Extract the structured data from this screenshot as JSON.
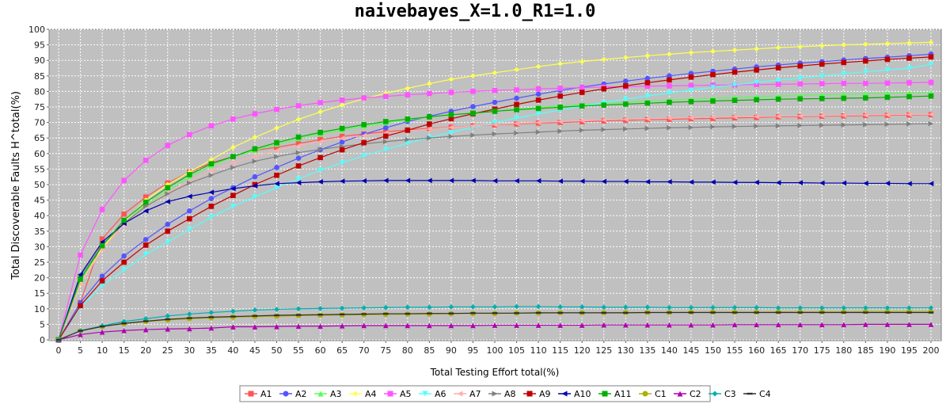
{
  "chart_data": {
    "type": "line",
    "title": "naivebayes_X=1.0_R1=1.0",
    "xlabel": "Total Testing Effort total(%)",
    "ylabel": "Total Discoverable Faults H^total(%)",
    "xlim": [
      0,
      200
    ],
    "ylim": [
      0,
      100
    ],
    "x": [
      0,
      5,
      10,
      15,
      20,
      25,
      30,
      35,
      40,
      45,
      50,
      55,
      60,
      65,
      70,
      75,
      80,
      85,
      90,
      95,
      100,
      105,
      110,
      115,
      120,
      125,
      130,
      135,
      140,
      145,
      150,
      155,
      160,
      165,
      170,
      175,
      180,
      185,
      190,
      195,
      200
    ],
    "y_ticks": [
      0,
      5,
      10,
      15,
      20,
      25,
      30,
      35,
      40,
      45,
      50,
      55,
      60,
      65,
      70,
      75,
      80,
      85,
      90,
      95,
      100
    ],
    "legend_position": "bottom",
    "series": [
      {
        "name": "A1",
        "color": "#ff5555",
        "marker": "square",
        "values": [
          0,
          12,
          32.5,
          40.5,
          46,
          50.5,
          54,
          57,
          59,
          61,
          62,
          63.2,
          64.5,
          65.5,
          66.3,
          67,
          67.6,
          68.1,
          68.5,
          68.9,
          69.2,
          69.5,
          69.8,
          70,
          70.2,
          70.5,
          70.7,
          70.9,
          71,
          71.2,
          71.3,
          71.5,
          71.6,
          71.8,
          71.9,
          72,
          72.1,
          72.2,
          72.3,
          72.4,
          72.5
        ]
      },
      {
        "name": "A2",
        "color": "#5555ff",
        "marker": "circle",
        "values": [
          0,
          12,
          20.5,
          27,
          32.3,
          37.2,
          41.5,
          45.5,
          49,
          52.5,
          55.5,
          58.5,
          61.2,
          63.7,
          66.2,
          68.3,
          70.3,
          72,
          73.6,
          75.1,
          76.5,
          77.8,
          79.1,
          80.3,
          81.4,
          82.4,
          83.3,
          84.2,
          85,
          85.8,
          86.5,
          87.2,
          87.9,
          88.5,
          89.1,
          89.6,
          90.1,
          90.6,
          91,
          91.5,
          92
        ]
      },
      {
        "name": "A3",
        "color": "#55ff55",
        "marker": "triangle-up",
        "values": [
          0,
          19,
          30.5,
          37.5,
          43.5,
          48,
          52.5,
          56,
          59,
          61,
          63,
          64.8,
          66.3,
          67.6,
          68.8,
          69.9,
          70.9,
          71.7,
          72.4,
          73.1,
          73.7,
          74.3,
          74.8,
          75.3,
          75.7,
          76.1,
          76.5,
          76.9,
          77.2,
          77.5,
          77.8,
          78,
          78.3,
          78.5,
          78.7,
          78.9,
          79.1,
          79.2,
          79.4,
          79.5,
          79.6
        ]
      },
      {
        "name": "A4",
        "color": "#ffff55",
        "marker": "diamond",
        "values": [
          0,
          18,
          29.5,
          38,
          45,
          50,
          54,
          58,
          62,
          65.2,
          68.2,
          71,
          73.4,
          75.6,
          77.6,
          79.4,
          81,
          82.5,
          83.9,
          85,
          86,
          87,
          88,
          88.9,
          89.6,
          90.3,
          90.9,
          91.5,
          92,
          92.5,
          92.9,
          93.3,
          93.7,
          94.1,
          94.4,
          94.7,
          95,
          95.2,
          95.4,
          95.6,
          95.8
        ]
      },
      {
        "name": "A5",
        "color": "#ff55ff",
        "marker": "square",
        "values": [
          0,
          27.3,
          42,
          51.3,
          57.8,
          62.6,
          66.1,
          68.9,
          71.1,
          72.8,
          74.2,
          75.4,
          76.4,
          77.2,
          77.9,
          78.4,
          78.9,
          79.3,
          79.7,
          80,
          80.3,
          80.5,
          80.8,
          81,
          81.2,
          81.4,
          81.5,
          81.7,
          81.8,
          81.9,
          82,
          82.1,
          82.2,
          82.3,
          82.4,
          82.5,
          82.6,
          82.6,
          82.7,
          82.8,
          82.9
        ]
      },
      {
        "name": "A6",
        "color": "#55ffff",
        "marker": "triangle-down",
        "values": [
          0,
          10.5,
          17.5,
          22.5,
          27.5,
          31.5,
          35.5,
          39.5,
          43,
          46,
          49,
          51.8,
          54.6,
          57,
          59.3,
          61.3,
          63.3,
          65.1,
          66.8,
          68.4,
          70,
          71.4,
          72.8,
          74,
          75.2,
          76.4,
          77.5,
          78.5,
          79.5,
          80.4,
          81.3,
          82.1,
          82.9,
          83.6,
          84.3,
          85,
          85.7,
          86.3,
          86.9,
          87.5,
          88.7
        ]
      },
      {
        "name": "A7",
        "color": "#ffafaf",
        "marker": "triangle-left",
        "values": [
          0,
          18,
          29,
          37,
          43,
          47.5,
          51,
          54.5,
          57,
          59,
          61,
          62.5,
          63.8,
          64.9,
          65.8,
          66.6,
          67.3,
          67.9,
          68.4,
          68.9,
          69.3,
          69.7,
          70,
          70.3,
          70.6,
          70.8,
          71,
          71.2,
          71.4,
          71.5,
          71.7,
          71.8,
          71.9,
          72,
          72.1,
          72.2,
          72.3,
          72.4,
          72.5,
          72.6,
          72.6
        ]
      },
      {
        "name": "A8",
        "color": "#808080",
        "marker": "triangle-right",
        "values": [
          0,
          20.5,
          30.5,
          37.5,
          43,
          47,
          50.5,
          53,
          55.5,
          57.5,
          59,
          60.3,
          61.3,
          62.3,
          63.1,
          63.8,
          64.5,
          65,
          65.5,
          65.9,
          66.3,
          66.6,
          66.9,
          67.2,
          67.5,
          67.7,
          67.9,
          68.1,
          68.3,
          68.4,
          68.6,
          68.7,
          68.8,
          68.9,
          69,
          69.1,
          69.2,
          69.3,
          69.4,
          69.5,
          69.6
        ]
      },
      {
        "name": "A9",
        "color": "#c00000",
        "marker": "square",
        "values": [
          0,
          11,
          19,
          25,
          30.5,
          35,
          39,
          43,
          46.5,
          50,
          53,
          56,
          58.7,
          61.2,
          63.5,
          65.6,
          67.5,
          69.5,
          71.2,
          72.8,
          74.3,
          75.8,
          77.2,
          78.5,
          79.7,
          80.8,
          81.8,
          82.8,
          83.7,
          84.6,
          85.4,
          86.2,
          86.9,
          87.6,
          88.2,
          88.8,
          89.3,
          89.8,
          90.3,
          90.7,
          91.1
        ]
      },
      {
        "name": "A10",
        "color": "#0000b0",
        "marker": "triangle-left",
        "values": [
          0,
          21,
          31.5,
          37.5,
          41.5,
          44.5,
          46.2,
          47.5,
          48.7,
          49.6,
          50.3,
          50.6,
          50.9,
          51.1,
          51.2,
          51.3,
          51.3,
          51.3,
          51.3,
          51.3,
          51.2,
          51.2,
          51.2,
          51.1,
          51.1,
          51,
          51,
          50.9,
          50.9,
          50.8,
          50.8,
          50.7,
          50.7,
          50.6,
          50.6,
          50.5,
          50.5,
          50.4,
          50.4,
          50.3,
          50.3
        ]
      },
      {
        "name": "A11",
        "color": "#00b000",
        "marker": "square",
        "values": [
          0,
          19.5,
          30.3,
          38.5,
          44.3,
          49,
          53.2,
          56.7,
          59,
          61.5,
          63.5,
          65.3,
          66.8,
          68.1,
          69.3,
          70.3,
          71.1,
          71.8,
          72.5,
          73,
          73.6,
          74.1,
          74.5,
          74.9,
          75.3,
          75.6,
          75.9,
          76.2,
          76.5,
          76.7,
          76.9,
          77.1,
          77.3,
          77.5,
          77.6,
          77.7,
          77.8,
          77.9,
          78.1,
          78.3,
          78.5
        ]
      },
      {
        "name": "C1",
        "color": "#b0b000",
        "marker": "circle",
        "values": [
          0,
          2.9,
          4.3,
          5.2,
          5.9,
          6.4,
          6.8,
          7.1,
          7.3,
          7.5,
          7.6,
          7.8,
          7.9,
          8,
          8.1,
          8.2,
          8.3,
          8.3,
          8.4,
          8.5,
          8.5,
          8.6,
          8.6,
          8.7,
          8.7,
          8.7,
          8.8,
          8.8,
          8.8,
          8.9,
          8.9,
          8.9,
          8.9,
          9,
          9,
          9,
          9,
          9.1,
          9.1,
          9.1,
          9.1
        ]
      },
      {
        "name": "C2",
        "color": "#b000b0",
        "marker": "triangle-up",
        "values": [
          0,
          1.7,
          2.5,
          3,
          3.3,
          3.5,
          3.6,
          3.8,
          4.2,
          4.2,
          4.3,
          4.4,
          4.4,
          4.5,
          4.6,
          4.6,
          4.6,
          4.6,
          4.6,
          4.6,
          4.7,
          4.7,
          4.7,
          4.7,
          4.7,
          4.8,
          4.8,
          4.8,
          4.8,
          4.8,
          4.8,
          4.9,
          4.9,
          4.9,
          4.9,
          4.9,
          4.9,
          5,
          5,
          5,
          5
        ]
      },
      {
        "name": "C3",
        "color": "#00b0b0",
        "marker": "diamond",
        "values": [
          0,
          2.9,
          4.5,
          5.9,
          6.8,
          7.7,
          8.3,
          8.8,
          9.2,
          9.6,
          9.8,
          10,
          10.1,
          10.2,
          10.3,
          10.4,
          10.5,
          10.5,
          10.6,
          10.6,
          10.6,
          10.7,
          10.7,
          10.6,
          10.6,
          10.5,
          10.5,
          10.5,
          10.4,
          10.4,
          10.4,
          10.4,
          10.4,
          10.3,
          10.3,
          10.3,
          10.3,
          10.3,
          10.3,
          10.3,
          10.3
        ]
      },
      {
        "name": "C4",
        "color": "#303030",
        "marker": "hline",
        "values": [
          0,
          2.9,
          4.3,
          5.3,
          6,
          6.6,
          7,
          7.3,
          7.5,
          7.7,
          7.9,
          8,
          8.1,
          8.2,
          8.3,
          8.4,
          8.4,
          8.5,
          8.5,
          8.6,
          8.6,
          8.6,
          8.7,
          8.7,
          8.7,
          8.7,
          8.7,
          8.8,
          8.8,
          8.8,
          8.8,
          8.8,
          8.8,
          8.8,
          8.8,
          8.8,
          8.8,
          8.8,
          8.8,
          8.8,
          8.8
        ]
      }
    ]
  }
}
